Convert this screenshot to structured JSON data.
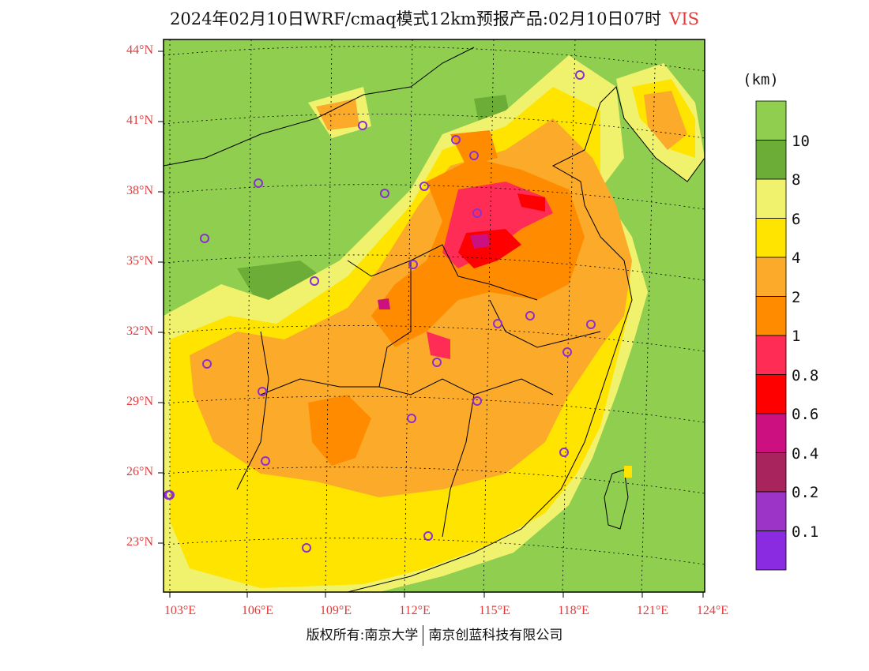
{
  "header": {
    "title": "2024年02月10日WRF/cmaq模式12km预报产品:02月10日07时",
    "variable_tag": "VIS"
  },
  "map": {
    "lat_labels": [
      "44°N",
      "41°N",
      "38°N",
      "35°N",
      "32°N",
      "29°N",
      "26°N",
      "23°N"
    ],
    "lon_labels": [
      "103°E",
      "106°E",
      "109°E",
      "112°E",
      "115°E",
      "118°E",
      "121°E",
      "124°E"
    ],
    "colors": {
      "background": "#8fce4f",
      "land_low": "#8fce4f",
      "class_8_10": "#6cad38",
      "class_6_8": "#f0f26e",
      "class_4_6": "#ffe400",
      "class_2_4": "#fbaa2a",
      "class_1_2": "#ff8c00",
      "class_0_8_1": "#ff2d55",
      "class_0_6_0_8": "#ff0000",
      "class_0_4_0_6": "#cc1080",
      "marker": "#8b2fd0",
      "label": "#e23a3a"
    },
    "city_markers": [
      "marker-01",
      "marker-02",
      "marker-03",
      "marker-04",
      "marker-05",
      "marker-06",
      "marker-07",
      "marker-08",
      "marker-09",
      "marker-10",
      "marker-11",
      "marker-12",
      "marker-13",
      "marker-14",
      "marker-15",
      "marker-16",
      "marker-17",
      "marker-18",
      "marker-19",
      "marker-20",
      "marker-21",
      "marker-22",
      "marker-23",
      "marker-24",
      "marker-25",
      "marker-26",
      "marker-27",
      "marker-28",
      "marker-29",
      "marker-30"
    ]
  },
  "colorbar": {
    "unit": "(km)",
    "levels": [
      "10",
      "8",
      "6",
      "4",
      "2",
      "1",
      "0.8",
      "0.6",
      "0.4",
      "0.2",
      "0.1"
    ],
    "colors": [
      "#8fce4f",
      "#6cad38",
      "#f0f26e",
      "#ffe400",
      "#fbaa2a",
      "#ff8c00",
      "#ff2d55",
      "#ff0000",
      "#cc1080",
      "#a8245c",
      "#9c34c8",
      "#8a2be2"
    ]
  },
  "footer": {
    "copyright": "版权所有:南京大学",
    "company": "南京创蓝科技有限公司"
  }
}
